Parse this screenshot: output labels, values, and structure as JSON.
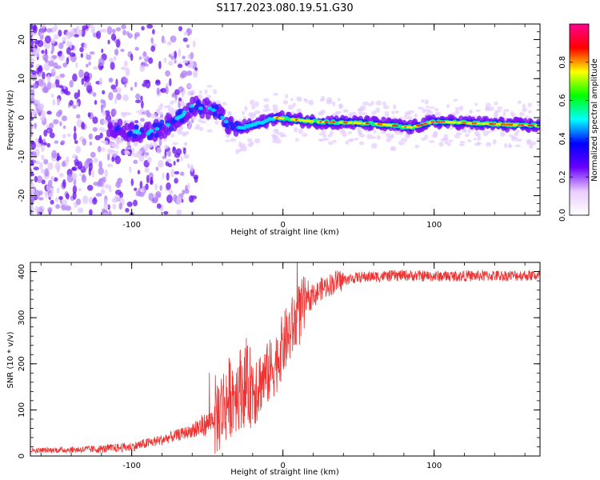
{
  "title": "S117.2023.080.19.51.G30",
  "chart_data": [
    {
      "type": "heatmap",
      "xlabel": "Height of straight line (km)",
      "ylabel": "Frequency (Hz)",
      "xlim": [
        -167,
        170
      ],
      "ylim": [
        -25,
        24
      ],
      "xticks": [
        -100,
        0,
        100
      ],
      "yticks": [
        -20,
        -10,
        0,
        10,
        20
      ],
      "colorbar": {
        "label": "Normalized spectral amplitude",
        "range": [
          0,
          1
        ],
        "ticks": [
          0.0,
          0.2,
          0.4,
          0.6,
          0.8
        ],
        "colors": [
          "#ffffff",
          "#e8ccff",
          "#6a00ff",
          "#0000ff",
          "#00ffff",
          "#00ff00",
          "#ffff00",
          "#ff0000",
          "#ff0090"
        ]
      },
      "ridge": [
        {
          "x": -110,
          "y": -3
        },
        {
          "x": -90,
          "y": -4
        },
        {
          "x": -75,
          "y": -2
        },
        {
          "x": -60,
          "y": 3
        },
        {
          "x": -45,
          "y": 2
        },
        {
          "x": -33,
          "y": -3
        },
        {
          "x": -20,
          "y": -2
        },
        {
          "x": -5,
          "y": 0
        },
        {
          "x": 20,
          "y": -1
        },
        {
          "x": 60,
          "y": -1.5
        },
        {
          "x": 85,
          "y": -2.5
        },
        {
          "x": 100,
          "y": -1
        },
        {
          "x": 130,
          "y": -1.5
        },
        {
          "x": 165,
          "y": -2
        }
      ]
    },
    {
      "type": "line",
      "xlabel": "Height of straight line (km)",
      "ylabel": "SNR (10 * v/v)",
      "xlim": [
        -167,
        170
      ],
      "ylim": [
        0,
        420
      ],
      "xticks": [
        -100,
        0,
        100
      ],
      "yticks": [
        0,
        100,
        200,
        300,
        400
      ],
      "series": [
        {
          "color": "#ee3333",
          "trend": [
            {
              "x": -167,
              "y": 12
            },
            {
              "x": -120,
              "y": 15
            },
            {
              "x": -100,
              "y": 20
            },
            {
              "x": -80,
              "y": 35
            },
            {
              "x": -60,
              "y": 55
            },
            {
              "x": -50,
              "y": 70
            },
            {
              "x": -42,
              "y": 95
            },
            {
              "x": -35,
              "y": 130
            },
            {
              "x": -28,
              "y": 150
            },
            {
              "x": -20,
              "y": 150
            },
            {
              "x": -12,
              "y": 170
            },
            {
              "x": -5,
              "y": 200
            },
            {
              "x": 0,
              "y": 240
            },
            {
              "x": 8,
              "y": 290
            },
            {
              "x": 15,
              "y": 330
            },
            {
              "x": 25,
              "y": 362
            },
            {
              "x": 35,
              "y": 378
            },
            {
              "x": 50,
              "y": 388
            },
            {
              "x": 80,
              "y": 392
            },
            {
              "x": 100,
              "y": 390
            },
            {
              "x": 170,
              "y": 392
            }
          ]
        }
      ]
    }
  ]
}
